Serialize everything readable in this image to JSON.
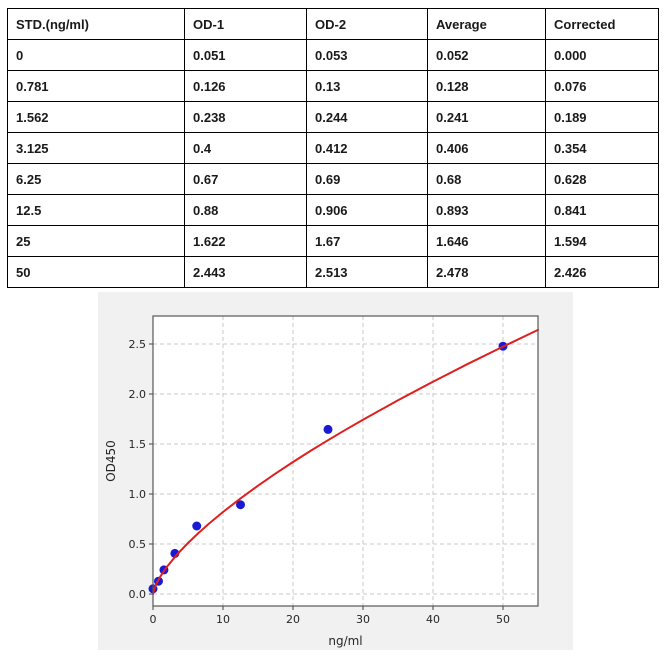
{
  "table": {
    "headers": [
      "STD.(ng/ml)",
      "OD-1",
      "OD-2",
      "Average",
      "Corrected"
    ],
    "rows": [
      [
        "0",
        "0.051",
        "0.053",
        "0.052",
        "0.000"
      ],
      [
        "0.781",
        "0.126",
        "0.13",
        "0.128",
        "0.076"
      ],
      [
        "1.562",
        "0.238",
        "0.244",
        "0.241",
        "0.189"
      ],
      [
        "3.125",
        "0.4",
        "0.412",
        "0.406",
        "0.354"
      ],
      [
        "6.25",
        "0.67",
        "0.69",
        "0.68",
        "0.628"
      ],
      [
        "12.5",
        "0.88",
        "0.906",
        "0.893",
        "0.841"
      ],
      [
        "25",
        "1.622",
        "1.67",
        "1.646",
        "1.594"
      ],
      [
        "50",
        "2.443",
        "2.513",
        "2.478",
        "2.426"
      ]
    ]
  },
  "chart_data": {
    "type": "scatter",
    "title": "",
    "xlabel": "ng/ml",
    "ylabel": "OD450",
    "xlim": [
      0,
      55
    ],
    "ylim": [
      -0.12,
      2.78
    ],
    "xticks": [
      0,
      10,
      20,
      30,
      40,
      50
    ],
    "xtick_labels": [
      "0",
      "10",
      "20",
      "30",
      "40",
      "50"
    ],
    "yticks": [
      0,
      0.5,
      1.0,
      1.5,
      2.0,
      2.5
    ],
    "ytick_labels": [
      "0.0",
      "0.5",
      "1.0",
      "1.5",
      "2.0",
      "2.5"
    ],
    "grid": true,
    "legend": "none",
    "colors": {
      "figure_bg": "#f1f1f1",
      "plot_bg": "#ffffff",
      "grid": "#c9c9c9",
      "spine": "#565656",
      "tick": "#444444",
      "curve": "#e01f1f",
      "points": "#1a1ad2"
    },
    "series": [
      {
        "name": "standard-points",
        "type": "scatter",
        "marker_radius": 4.5,
        "x": [
          0,
          0.781,
          1.562,
          3.125,
          6.25,
          12.5,
          25,
          50
        ],
        "y": [
          0.052,
          0.128,
          0.241,
          0.406,
          0.68,
          0.893,
          1.646,
          2.478
        ]
      },
      {
        "name": "fitted-curve",
        "type": "line",
        "line_width": 2,
        "x": [
          0,
          0.25,
          0.5,
          1,
          1.5,
          2,
          3,
          4,
          5,
          6.5,
          8,
          10,
          12.5,
          15,
          17.5,
          20,
          22.5,
          25,
          27.5,
          30,
          35,
          40,
          45,
          50,
          55
        ],
        "y": [
          0,
          0.065,
          0.105,
          0.169,
          0.223,
          0.272,
          0.359,
          0.437,
          0.51,
          0.61,
          0.704,
          0.82,
          0.956,
          1.083,
          1.204,
          1.32,
          1.431,
          1.538,
          1.642,
          1.743,
          1.937,
          2.123,
          2.302,
          2.474,
          2.641
        ]
      }
    ]
  }
}
